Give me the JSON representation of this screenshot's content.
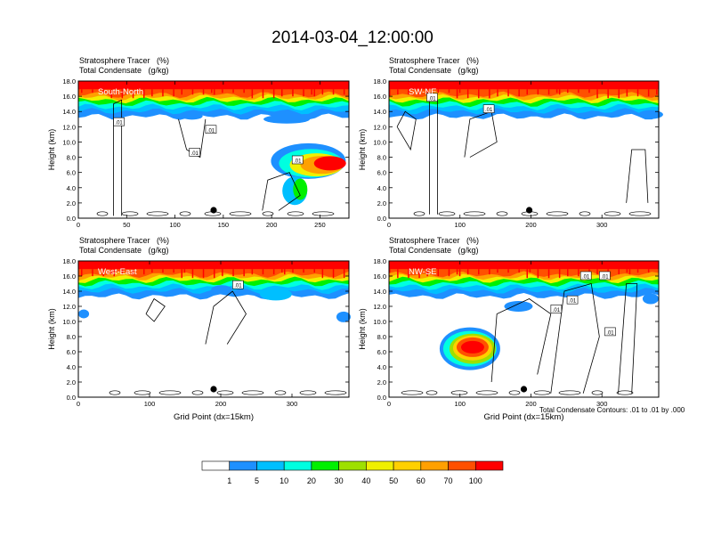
{
  "page": {
    "title": "2014-03-04_12:00:00"
  },
  "header_lines": {
    "tracer": "Stratosphere Tracer   (%)",
    "condensate": "Total Condensate   (g/kg)"
  },
  "contour_note": "Total Condensate Contours: .01 to .01 by .000",
  "colors": {
    "c0": "#ffffff",
    "c1": "#1e90ff",
    "c5": "#00bfff",
    "c10": "#00ffe0",
    "c20": "#00f000",
    "c30": "#9ee000",
    "c40": "#f0f000",
    "c50": "#ffd000",
    "c60": "#ffa000",
    "c70": "#ff5000",
    "c100": "#ff0000"
  },
  "chart_data": [
    {
      "type": "heatmap",
      "title": "South-North",
      "ylabel": "Height (km)",
      "xlabel": "",
      "xlim": [
        0,
        280
      ],
      "ylim": [
        0,
        18
      ],
      "xticks": [
        "0",
        "50",
        "100",
        "150",
        "200",
        "250"
      ],
      "yticks": [
        "0.0",
        "2.0",
        "4.0",
        "6.0",
        "8.0",
        "10.0",
        "12.0",
        "14.0",
        "16.0",
        "18.0"
      ],
      "contour_labels": [
        ".01",
        ".01",
        ".01",
        ".01"
      ]
    },
    {
      "type": "heatmap",
      "title": "SW-NE",
      "ylabel": "Height (km)",
      "xlabel": "",
      "xlim": [
        0,
        380
      ],
      "ylim": [
        0,
        18
      ],
      "xticks": [
        "0",
        "100",
        "200",
        "300"
      ],
      "yticks": [
        "0.0",
        "2.0",
        "4.0",
        "6.0",
        "8.0",
        "10.0",
        "12.0",
        "14.0",
        "16.0",
        "18.0"
      ],
      "contour_labels": [
        ".01",
        ".01"
      ]
    },
    {
      "type": "heatmap",
      "title": "West-East",
      "ylabel": "Height (km)",
      "xlabel": "Grid Point (dx=15km)",
      "xlim": [
        0,
        380
      ],
      "ylim": [
        0,
        18
      ],
      "xticks": [
        "0",
        "100",
        "200",
        "300"
      ],
      "yticks": [
        "0.0",
        "2.0",
        "4.0",
        "6.0",
        "8.0",
        "10.0",
        "12.0",
        "14.0",
        "16.0",
        "18.0"
      ],
      "contour_labels": [
        ".01"
      ]
    },
    {
      "type": "heatmap",
      "title": "NW-SE",
      "ylabel": "Height (km)",
      "xlabel": "Grid Point (dx=15km)",
      "xlim": [
        0,
        380
      ],
      "ylim": [
        0,
        18
      ],
      "xticks": [
        "0",
        "100",
        "200",
        "300"
      ],
      "yticks": [
        "0.0",
        "2.0",
        "4.0",
        "6.0",
        "8.0",
        "10.0",
        "12.0",
        "14.0",
        "16.0",
        "18.0"
      ],
      "contour_labels": [
        ".01",
        ".01",
        ".01",
        ".01",
        ".01"
      ]
    }
  ],
  "colorbar": {
    "labels": [
      "1",
      "5",
      "10",
      "20",
      "30",
      "40",
      "50",
      "60",
      "70",
      "100"
    ]
  }
}
